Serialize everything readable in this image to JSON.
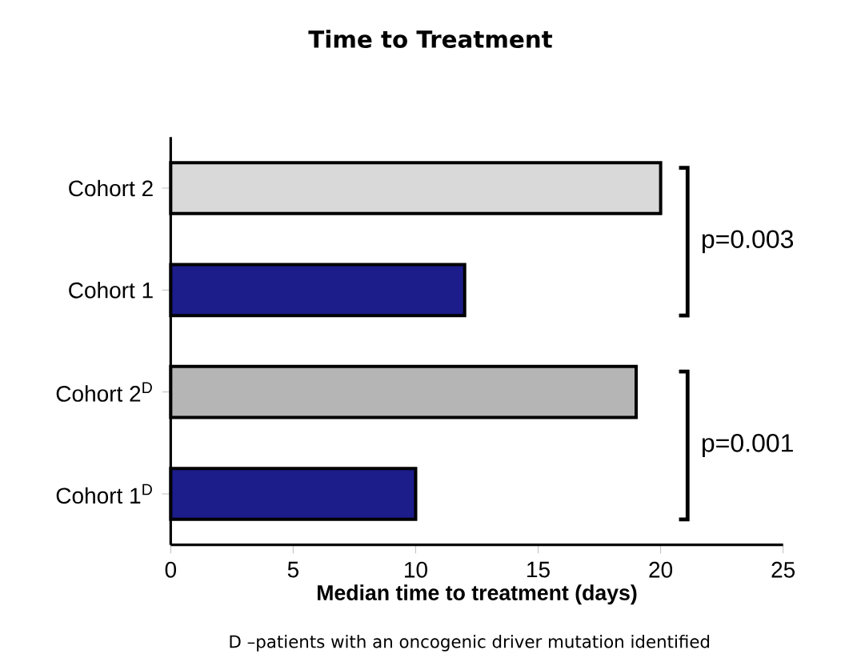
{
  "chart_data": {
    "type": "bar",
    "orientation": "horizontal",
    "title": "Time to Treatment",
    "xlabel": "Median time to treatment (days)",
    "categories": [
      "Cohort 2",
      "Cohort 1",
      "Cohort 2$^{D}$",
      "Cohort 1$^{D}$"
    ],
    "values": [
      20,
      12,
      19,
      10
    ],
    "colors": [
      "#d9d9d9",
      "#1c1c8a",
      "#b5b5b5",
      "#1c1c8a"
    ],
    "xlim": [
      0,
      25
    ],
    "xticks": [
      0,
      5,
      10,
      15,
      20,
      25
    ],
    "grid": false,
    "annotations": [
      "p=0.003",
      "p=0.001",
      "D –patients with an oncogenic driver mutation identified"
    ]
  }
}
